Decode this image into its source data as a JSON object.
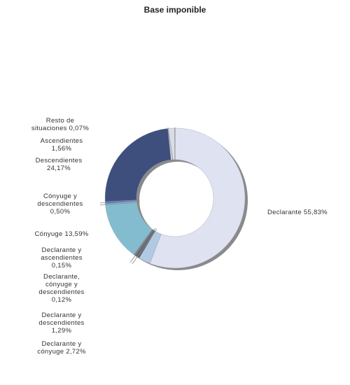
{
  "chart_data": {
    "type": "pie",
    "title": "Base imponible",
    "series": [
      {
        "name": "Declarante",
        "value": 55.83,
        "value_label": "55,83%",
        "color": "#dfe2f1",
        "label_lines": [
          "Declarante 55,83%"
        ]
      },
      {
        "name": "Declarante y cónyuge",
        "value": 2.72,
        "value_label": "2,72%",
        "color": "#b1c9e3",
        "label_lines": [
          "Declarante y",
          "cónyuge 2,72%"
        ]
      },
      {
        "name": "Declarante y descendientes",
        "value": 1.29,
        "value_label": "1,29%",
        "color": "#5f6670",
        "label_lines": [
          "Declarante y",
          "descendientes",
          "1,29%"
        ]
      },
      {
        "name": "Declarante, cónyuge y descendientes",
        "value": 0.12,
        "value_label": "0,12%",
        "color": "#7a8090",
        "label_lines": [
          "Declarante,",
          "cónyuge y",
          "descendientes",
          "0,12%"
        ]
      },
      {
        "name": "Declarante y ascendientes",
        "value": 0.15,
        "value_label": "0,15%",
        "color": "#8a8a8a",
        "label_lines": [
          "Declarante y",
          "ascendientes",
          "0,15%"
        ]
      },
      {
        "name": "Cónyuge",
        "value": 13.59,
        "value_label": "13,59%",
        "color": "#83bccf",
        "label_lines": [
          "Cónyuge 13,59%"
        ]
      },
      {
        "name": "Cónyuge y descendientes",
        "value": 0.5,
        "value_label": "0,50%",
        "color": "#4f6fd0",
        "label_lines": [
          "Cónyuge y",
          "descendientes",
          "0,50%"
        ]
      },
      {
        "name": "Descendientes",
        "value": 24.17,
        "value_label": "24,17%",
        "color": "#3e4f7e",
        "label_lines": [
          "Descendientes",
          "24,17%"
        ]
      },
      {
        "name": "Ascendientes",
        "value": 1.56,
        "value_label": "1,56%",
        "color": "#dadde8",
        "label_lines": [
          "Ascendientes",
          "1,56%"
        ]
      },
      {
        "name": "Resto de situaciones",
        "value": 0.07,
        "value_label": "0,07%",
        "color": "#5a5a5a",
        "label_lines": [
          "Resto de",
          "situaciones 0,07%"
        ]
      }
    ],
    "legend": "none",
    "donut": true
  }
}
